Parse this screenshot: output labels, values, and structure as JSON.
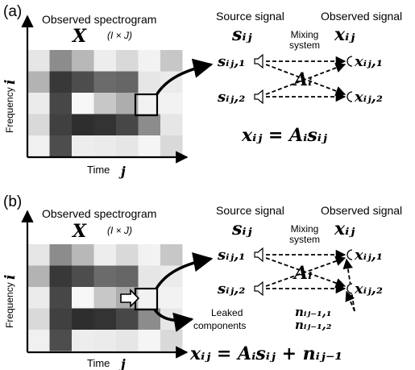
{
  "panels": [
    {
      "tag": "(a)",
      "spectrogram_title": "Observed spectrogram",
      "X_symbol": "X",
      "size": "(I × J)",
      "ylabel": "Frequency",
      "ylabel_var": "i",
      "xlabel": "Time",
      "xlabel_var": "j",
      "source_label": "Source signal",
      "observed_label": "Observed signal",
      "s_symbol": "sᵢⱼ",
      "x_symbol": "xᵢⱼ",
      "mixing_line1": "Mixing",
      "mixing_line2": "system",
      "A_symbol": "Aᵢ",
      "s1": "sᵢⱼ,₁",
      "s2": "sᵢⱼ,₂",
      "x1": "xᵢⱼ,₁",
      "x2": "xᵢⱼ,₂",
      "equation": "xᵢⱼ = Aᵢsᵢⱼ",
      "grid": [
        [
          0.9,
          0.55,
          0.72,
          0.93,
          0.85,
          0.95,
          0.78
        ],
        [
          0.7,
          0.22,
          0.3,
          0.42,
          0.4,
          0.9,
          0.92
        ],
        [
          0.92,
          0.28,
          0.97,
          0.78,
          0.68,
          0.95,
          0.95
        ],
        [
          0.85,
          0.25,
          0.18,
          0.2,
          0.28,
          0.55,
          0.9
        ],
        [
          0.94,
          0.3,
          0.93,
          0.92,
          0.9,
          0.96,
          0.85
        ]
      ]
    },
    {
      "tag": "(b)",
      "spectrogram_title": "Observed spectrogram",
      "X_symbol": "X",
      "size": "(I × J)",
      "ylabel": "Frequency",
      "ylabel_var": "i",
      "xlabel": "Time",
      "xlabel_var": "j",
      "source_label": "Source signal",
      "observed_label": "Observed signal",
      "s_symbol": "sᵢⱼ",
      "x_symbol": "xᵢⱼ",
      "mixing_line1": "Mixing",
      "mixing_line2": "system",
      "A_symbol": "Aᵢ",
      "s1": "sᵢⱼ,₁",
      "s2": "sᵢⱼ,₂",
      "x1": "xᵢⱼ,₁",
      "x2": "xᵢⱼ,₂",
      "leak_line1": "Leaked",
      "leak_line2": "components",
      "n1": "nᵢⱼ₋₁,₁",
      "n2": "nᵢⱼ₋₁,₂",
      "equation": "xᵢⱼ = Aᵢsᵢⱼ + nᵢⱼ₋₁",
      "grid": [
        [
          0.9,
          0.55,
          0.72,
          0.93,
          0.85,
          0.95,
          0.78
        ],
        [
          0.7,
          0.22,
          0.3,
          0.42,
          0.4,
          0.9,
          0.92
        ],
        [
          0.92,
          0.28,
          0.97,
          0.78,
          0.68,
          0.95,
          0.95
        ],
        [
          0.85,
          0.25,
          0.18,
          0.2,
          0.28,
          0.55,
          0.9
        ],
        [
          0.94,
          0.3,
          0.93,
          0.92,
          0.9,
          0.96,
          0.85
        ]
      ]
    }
  ]
}
